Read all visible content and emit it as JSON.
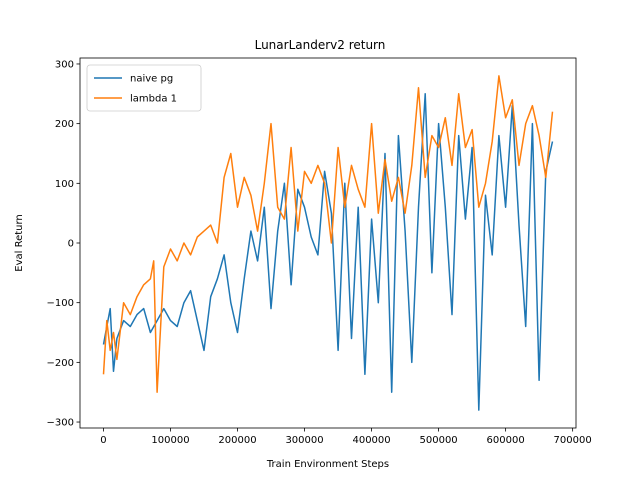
{
  "chart_data": {
    "type": "line",
    "title": "LunarLanderv2 return",
    "xlabel": "Train Environment Steps",
    "ylabel": "Eval Return",
    "xlim": [
      -35000,
      705000
    ],
    "ylim": [
      -310,
      310
    ],
    "xticks": [
      0,
      100000,
      200000,
      300000,
      400000,
      500000,
      600000,
      700000
    ],
    "xtick_labels": [
      "0",
      "100000",
      "200000",
      "300000",
      "400000",
      "500000",
      "600000",
      "700000"
    ],
    "yticks": [
      -300,
      -200,
      -100,
      0,
      100,
      200,
      300
    ],
    "ytick_labels": [
      "−300",
      "−200",
      "−100",
      "0",
      "100",
      "200",
      "300"
    ],
    "grid": false,
    "legend": "top-left",
    "series": [
      {
        "name": "naive pg",
        "color": "#1f77b4",
        "x": [
          0,
          5000,
          10000,
          15000,
          20000,
          30000,
          40000,
          50000,
          60000,
          70000,
          80000,
          90000,
          100000,
          110000,
          120000,
          130000,
          140000,
          150000,
          160000,
          170000,
          180000,
          190000,
          200000,
          210000,
          220000,
          230000,
          240000,
          250000,
          260000,
          270000,
          280000,
          290000,
          300000,
          310000,
          320000,
          330000,
          340000,
          350000,
          360000,
          370000,
          380000,
          390000,
          400000,
          410000,
          420000,
          430000,
          440000,
          450000,
          460000,
          470000,
          480000,
          490000,
          500000,
          510000,
          520000,
          530000,
          540000,
          550000,
          560000,
          570000,
          580000,
          590000,
          600000,
          610000,
          620000,
          630000,
          640000,
          650000,
          660000,
          670000
        ],
        "y": [
          -170,
          -140,
          -110,
          -215,
          -160,
          -130,
          -140,
          -120,
          -110,
          -150,
          -130,
          -110,
          -130,
          -140,
          -100,
          -80,
          -130,
          -180,
          -90,
          -60,
          -20,
          -100,
          -150,
          -60,
          20,
          -30,
          60,
          -110,
          20,
          100,
          -70,
          90,
          60,
          10,
          -20,
          120,
          50,
          -180,
          100,
          -160,
          60,
          -220,
          40,
          -100,
          150,
          -250,
          180,
          20,
          -200,
          60,
          250,
          -50,
          200,
          60,
          -120,
          180,
          40,
          160,
          -280,
          80,
          -20,
          180,
          60,
          230,
          30,
          -140,
          200,
          -230,
          120,
          170
        ]
      },
      {
        "name": "lambda 1",
        "color": "#ff7f0e",
        "x": [
          0,
          5000,
          10000,
          15000,
          20000,
          30000,
          40000,
          50000,
          60000,
          70000,
          75000,
          80000,
          90000,
          100000,
          110000,
          120000,
          130000,
          140000,
          150000,
          160000,
          170000,
          180000,
          190000,
          200000,
          210000,
          220000,
          230000,
          240000,
          250000,
          260000,
          270000,
          280000,
          290000,
          300000,
          310000,
          320000,
          330000,
          340000,
          350000,
          360000,
          370000,
          380000,
          390000,
          400000,
          410000,
          420000,
          430000,
          440000,
          450000,
          460000,
          470000,
          480000,
          490000,
          500000,
          510000,
          520000,
          530000,
          540000,
          550000,
          560000,
          570000,
          580000,
          590000,
          600000,
          610000,
          620000,
          630000,
          640000,
          650000,
          660000,
          670000
        ],
        "y": [
          -220,
          -130,
          -180,
          -150,
          -195,
          -100,
          -120,
          -90,
          -70,
          -60,
          -30,
          -250,
          -40,
          -10,
          -30,
          0,
          -20,
          10,
          20,
          30,
          0,
          110,
          150,
          60,
          110,
          80,
          20,
          100,
          200,
          60,
          40,
          160,
          20,
          120,
          100,
          130,
          100,
          0,
          160,
          60,
          130,
          90,
          60,
          200,
          50,
          140,
          70,
          110,
          50,
          130,
          260,
          110,
          180,
          160,
          210,
          130,
          250,
          160,
          190,
          60,
          100,
          170,
          280,
          210,
          240,
          130,
          200,
          230,
          180,
          110,
          220
        ]
      }
    ]
  }
}
